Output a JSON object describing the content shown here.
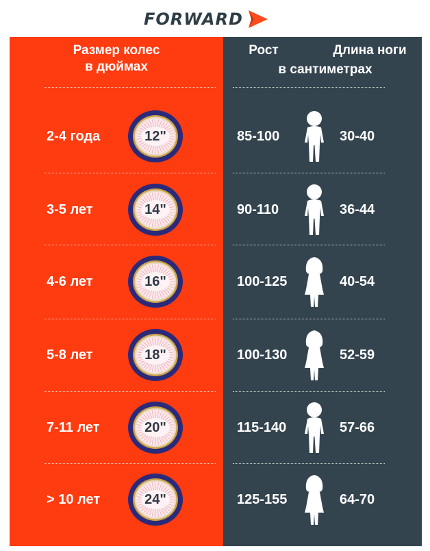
{
  "brand": {
    "name": "FORWARD",
    "mark_color": "#ff4a1c",
    "text_color": "#2f3d47"
  },
  "colors": {
    "left_panel": "#ff3b10",
    "right_panel": "#34444f",
    "tire": "#2b2a7a",
    "rim": "#c9a24a"
  },
  "headers": {
    "wheel_size": [
      "Размер колес",
      "в дюймах"
    ],
    "height": "Рост",
    "leg_length": "Длина ноги",
    "units": "в сантиметрах"
  },
  "rows": [
    {
      "age": "2-4 года",
      "wheel": "12\"",
      "height": "85-100",
      "leg": "30-40",
      "icon": "boy-icon"
    },
    {
      "age": "3-5 лет",
      "wheel": "14\"",
      "height": "90-110",
      "leg": "36-44",
      "icon": "boy-icon"
    },
    {
      "age": "4-6 лет",
      "wheel": "16\"",
      "height": "100-125",
      "leg": "40-54",
      "icon": "girl-icon"
    },
    {
      "age": "5-8 лет",
      "wheel": "18\"",
      "height": "100-130",
      "leg": "52-59",
      "icon": "girl-icon"
    },
    {
      "age": "7-11 лет",
      "wheel": "20\"",
      "height": "115-140",
      "leg": "57-66",
      "icon": "boy-icon"
    },
    {
      "age": "> 10 лет",
      "wheel": "24\"",
      "height": "125-155",
      "leg": "64-70",
      "icon": "girl-icon"
    }
  ]
}
